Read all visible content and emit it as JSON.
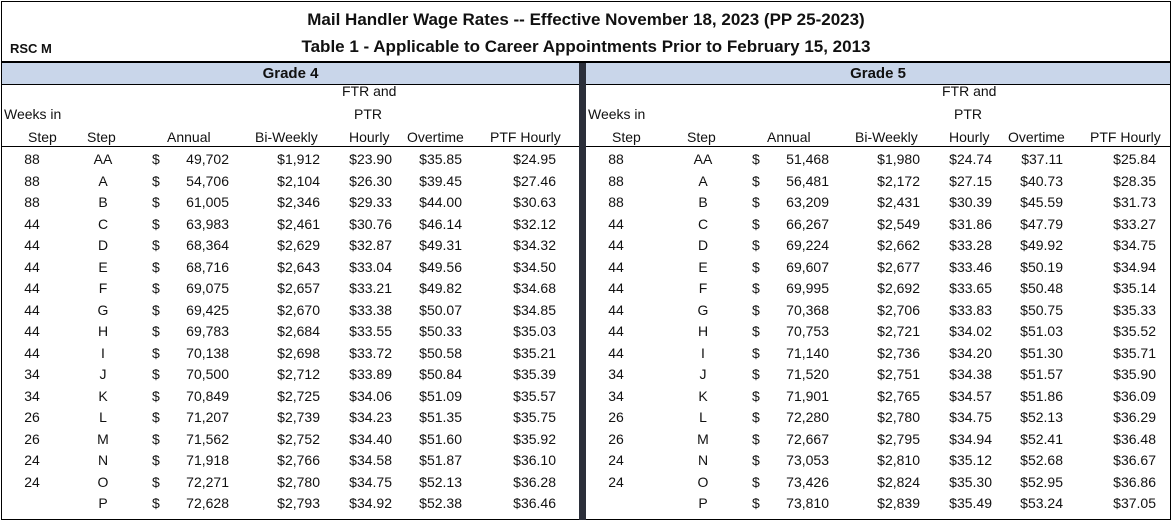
{
  "title": "Mail Handler Wage Rates -- Effective November 18, 2023 (PP 25-2023)",
  "subtitle": "Table 1 - Applicable to Career Appointments Prior to February 15, 2013",
  "rsc": "RSC M",
  "headers": {
    "weeks_line1": "Weeks in",
    "weeks_line2": "Step",
    "step": "Step",
    "annual": "Annual",
    "biweekly": "Bi-Weekly",
    "ftr_line1": "FTR and",
    "ftr_line2": "PTR",
    "ftr_line3": "Hourly",
    "overtime": "Overtime",
    "ptf": "PTF Hourly"
  },
  "currency_symbol": "$",
  "grades": [
    {
      "label": "Grade 4",
      "rows": [
        {
          "weeks": "88",
          "step": "AA",
          "annual": "49,702",
          "biweekly": "$1,912",
          "hourly": "$23.90",
          "overtime": "$35.85",
          "ptf": "$24.95"
        },
        {
          "weeks": "88",
          "step": "A",
          "annual": "54,706",
          "biweekly": "$2,104",
          "hourly": "$26.30",
          "overtime": "$39.45",
          "ptf": "$27.46"
        },
        {
          "weeks": "88",
          "step": "B",
          "annual": "61,005",
          "biweekly": "$2,346",
          "hourly": "$29.33",
          "overtime": "$44.00",
          "ptf": "$30.63"
        },
        {
          "weeks": "44",
          "step": "C",
          "annual": "63,983",
          "biweekly": "$2,461",
          "hourly": "$30.76",
          "overtime": "$46.14",
          "ptf": "$32.12"
        },
        {
          "weeks": "44",
          "step": "D",
          "annual": "68,364",
          "biweekly": "$2,629",
          "hourly": "$32.87",
          "overtime": "$49.31",
          "ptf": "$34.32"
        },
        {
          "weeks": "44",
          "step": "E",
          "annual": "68,716",
          "biweekly": "$2,643",
          "hourly": "$33.04",
          "overtime": "$49.56",
          "ptf": "$34.50"
        },
        {
          "weeks": "44",
          "step": "F",
          "annual": "69,075",
          "biweekly": "$2,657",
          "hourly": "$33.21",
          "overtime": "$49.82",
          "ptf": "$34.68"
        },
        {
          "weeks": "44",
          "step": "G",
          "annual": "69,425",
          "biweekly": "$2,670",
          "hourly": "$33.38",
          "overtime": "$50.07",
          "ptf": "$34.85"
        },
        {
          "weeks": "44",
          "step": "H",
          "annual": "69,783",
          "biweekly": "$2,684",
          "hourly": "$33.55",
          "overtime": "$50.33",
          "ptf": "$35.03"
        },
        {
          "weeks": "44",
          "step": "I",
          "annual": "70,138",
          "biweekly": "$2,698",
          "hourly": "$33.72",
          "overtime": "$50.58",
          "ptf": "$35.21"
        },
        {
          "weeks": "34",
          "step": "J",
          "annual": "70,500",
          "biweekly": "$2,712",
          "hourly": "$33.89",
          "overtime": "$50.84",
          "ptf": "$35.39"
        },
        {
          "weeks": "34",
          "step": "K",
          "annual": "70,849",
          "biweekly": "$2,725",
          "hourly": "$34.06",
          "overtime": "$51.09",
          "ptf": "$35.57"
        },
        {
          "weeks": "26",
          "step": "L",
          "annual": "71,207",
          "biweekly": "$2,739",
          "hourly": "$34.23",
          "overtime": "$51.35",
          "ptf": "$35.75"
        },
        {
          "weeks": "26",
          "step": "M",
          "annual": "71,562",
          "biweekly": "$2,752",
          "hourly": "$34.40",
          "overtime": "$51.60",
          "ptf": "$35.92"
        },
        {
          "weeks": "24",
          "step": "N",
          "annual": "71,918",
          "biweekly": "$2,766",
          "hourly": "$34.58",
          "overtime": "$51.87",
          "ptf": "$36.10"
        },
        {
          "weeks": "24",
          "step": "O",
          "annual": "72,271",
          "biweekly": "$2,780",
          "hourly": "$34.75",
          "overtime": "$52.13",
          "ptf": "$36.28"
        },
        {
          "weeks": "",
          "step": "P",
          "annual": "72,628",
          "biweekly": "$2,793",
          "hourly": "$34.92",
          "overtime": "$52.38",
          "ptf": "$36.46"
        }
      ]
    },
    {
      "label": "Grade 5",
      "rows": [
        {
          "weeks": "88",
          "step": "AA",
          "annual": "51,468",
          "biweekly": "$1,980",
          "hourly": "$24.74",
          "overtime": "$37.11",
          "ptf": "$25.84"
        },
        {
          "weeks": "88",
          "step": "A",
          "annual": "56,481",
          "biweekly": "$2,172",
          "hourly": "$27.15",
          "overtime": "$40.73",
          "ptf": "$28.35"
        },
        {
          "weeks": "88",
          "step": "B",
          "annual": "63,209",
          "biweekly": "$2,431",
          "hourly": "$30.39",
          "overtime": "$45.59",
          "ptf": "$31.73"
        },
        {
          "weeks": "44",
          "step": "C",
          "annual": "66,267",
          "biweekly": "$2,549",
          "hourly": "$31.86",
          "overtime": "$47.79",
          "ptf": "$33.27"
        },
        {
          "weeks": "44",
          "step": "D",
          "annual": "69,224",
          "biweekly": "$2,662",
          "hourly": "$33.28",
          "overtime": "$49.92",
          "ptf": "$34.75"
        },
        {
          "weeks": "44",
          "step": "E",
          "annual": "69,607",
          "biweekly": "$2,677",
          "hourly": "$33.46",
          "overtime": "$50.19",
          "ptf": "$34.94"
        },
        {
          "weeks": "44",
          "step": "F",
          "annual": "69,995",
          "biweekly": "$2,692",
          "hourly": "$33.65",
          "overtime": "$50.48",
          "ptf": "$35.14"
        },
        {
          "weeks": "44",
          "step": "G",
          "annual": "70,368",
          "biweekly": "$2,706",
          "hourly": "$33.83",
          "overtime": "$50.75",
          "ptf": "$35.33"
        },
        {
          "weeks": "44",
          "step": "H",
          "annual": "70,753",
          "biweekly": "$2,721",
          "hourly": "$34.02",
          "overtime": "$51.03",
          "ptf": "$35.52"
        },
        {
          "weeks": "44",
          "step": "I",
          "annual": "71,140",
          "biweekly": "$2,736",
          "hourly": "$34.20",
          "overtime": "$51.30",
          "ptf": "$35.71"
        },
        {
          "weeks": "34",
          "step": "J",
          "annual": "71,520",
          "biweekly": "$2,751",
          "hourly": "$34.38",
          "overtime": "$51.57",
          "ptf": "$35.90"
        },
        {
          "weeks": "34",
          "step": "K",
          "annual": "71,901",
          "biweekly": "$2,765",
          "hourly": "$34.57",
          "overtime": "$51.86",
          "ptf": "$36.09"
        },
        {
          "weeks": "26",
          "step": "L",
          "annual": "72,280",
          "biweekly": "$2,780",
          "hourly": "$34.75",
          "overtime": "$52.13",
          "ptf": "$36.29"
        },
        {
          "weeks": "26",
          "step": "M",
          "annual": "72,667",
          "biweekly": "$2,795",
          "hourly": "$34.94",
          "overtime": "$52.41",
          "ptf": "$36.48"
        },
        {
          "weeks": "24",
          "step": "N",
          "annual": "73,053",
          "biweekly": "$2,810",
          "hourly": "$35.12",
          "overtime": "$52.68",
          "ptf": "$36.67"
        },
        {
          "weeks": "24",
          "step": "O",
          "annual": "73,426",
          "biweekly": "$2,824",
          "hourly": "$35.30",
          "overtime": "$52.95",
          "ptf": "$36.86"
        },
        {
          "weeks": "",
          "step": "P",
          "annual": "73,810",
          "biweekly": "$2,839",
          "hourly": "$35.49",
          "overtime": "$53.24",
          "ptf": "$37.05"
        }
      ]
    }
  ]
}
